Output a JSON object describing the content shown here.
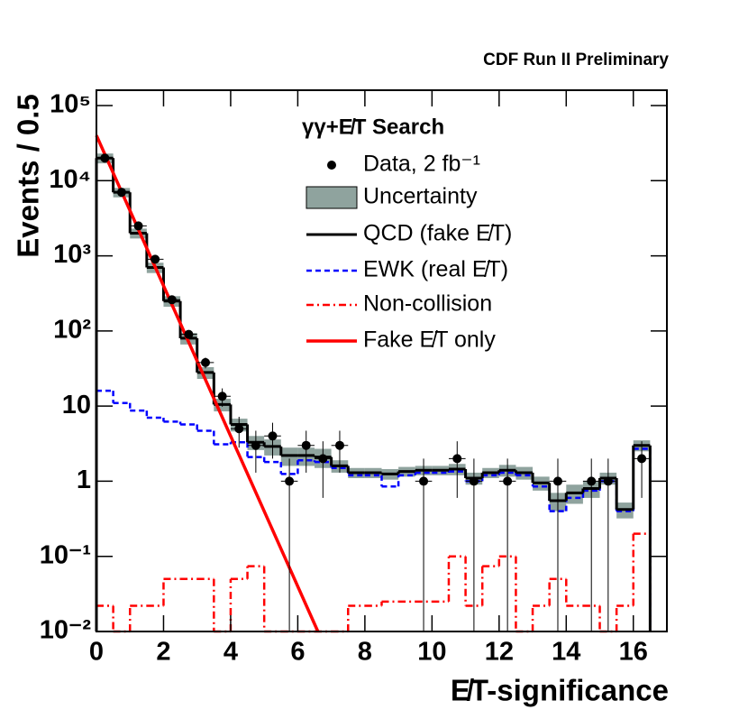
{
  "chart_data": {
    "type": "histogram",
    "title": "CDF Run II Preliminary",
    "xlabel": "E̸T-significance",
    "ylabel": "Events / 0.5",
    "legend_title": "γγ+E̸T Search",
    "log_y": true,
    "xlim": [
      0,
      17
    ],
    "ylim": [
      0.01,
      160000
    ],
    "xticks": [
      0,
      2,
      4,
      6,
      8,
      10,
      12,
      14,
      16
    ],
    "yticks": [
      {
        "value": 0.01,
        "label": "10⁻²"
      },
      {
        "value": 0.1,
        "label": "10⁻¹"
      },
      1,
      10,
      {
        "value": 100,
        "label": "10²"
      },
      {
        "value": 1000,
        "label": "10³"
      },
      {
        "value": 10000,
        "label": "10⁴"
      },
      {
        "value": 100000,
        "label": "10⁵"
      }
    ],
    "bins": [
      0,
      0.5,
      1,
      1.5,
      2,
      2.5,
      3,
      3.5,
      4,
      4.5,
      5,
      5.5,
      6,
      6.5,
      7,
      7.5,
      8,
      8.5,
      9,
      9.5,
      10,
      10.5,
      11,
      11.5,
      12,
      12.5,
      13,
      13.5,
      14,
      14.5,
      15,
      15.5,
      16,
      16.5
    ],
    "data": {
      "name": "Data, 2 fb⁻¹",
      "color": "#000000",
      "xerr": 0.25,
      "x": [
        0.25,
        0.75,
        1.25,
        1.75,
        2.25,
        2.75,
        3.25,
        3.75,
        4.25,
        4.75,
        5.25,
        5.75,
        6.25,
        6.75,
        7.25,
        9.75,
        10.75,
        11.25,
        12.25,
        13.75,
        14.75,
        15.25,
        16.25
      ],
      "values": [
        20000,
        7000,
        2500,
        900,
        260,
        90,
        38,
        13.5,
        5,
        3,
        4,
        1,
        3,
        2,
        3,
        1,
        2,
        1,
        1,
        1,
        1,
        1,
        2
      ],
      "yerr": [
        141,
        84,
        50,
        30,
        16,
        9.5,
        6.2,
        3.7,
        2.2,
        1.7,
        2,
        1,
        1.7,
        1.4,
        1.7,
        1,
        1.4,
        1,
        1,
        1,
        1,
        1,
        1.4
      ]
    },
    "uncertainty_name": "Uncertainty",
    "uncertainty_color": "#8fa39e",
    "series": [
      {
        "name": "QCD (fake E̸T)",
        "color": "#000000",
        "style": "solid",
        "values": [
          20000,
          7000,
          2000,
          700,
          250,
          80,
          28,
          10.5,
          5.7,
          3.3,
          2.9,
          2.2,
          2.2,
          2.1,
          1.6,
          1.3,
          1.3,
          1.25,
          1.35,
          1.4,
          1.4,
          1.45,
          1.1,
          1.3,
          1.4,
          1.3,
          0.95,
          0.55,
          0.7,
          0.8,
          1.1,
          0.42,
          3.0
        ],
        "uncertainty": [
          3000,
          1000,
          300,
          110,
          40,
          14,
          5,
          2,
          1.1,
          0.7,
          0.7,
          0.6,
          0.6,
          0.6,
          0.3,
          0.2,
          0.2,
          0.2,
          0.2,
          0.2,
          0.2,
          0.25,
          0.2,
          0.2,
          0.25,
          0.25,
          0.2,
          0.15,
          0.2,
          0.2,
          0.2,
          0.1,
          0.5
        ]
      },
      {
        "name": "EWK (real E̸T)",
        "color": "#0000ff",
        "style": "dashed",
        "values": [
          16,
          11,
          8.7,
          7,
          6.2,
          5.7,
          4.7,
          3.1,
          3.3,
          2.1,
          1.8,
          1.25,
          1.9,
          1.8,
          1.5,
          1.2,
          1.2,
          0.85,
          1.2,
          1.3,
          1.3,
          1.35,
          1.0,
          1.2,
          1.3,
          1.2,
          0.85,
          0.4,
          0.6,
          0.75,
          1.0,
          0.4,
          2.7
        ]
      },
      {
        "name": "Non-collision",
        "color": "#ff0000",
        "style": "dashdot",
        "values": [
          0.022,
          null,
          0.022,
          0.022,
          0.05,
          0.05,
          0.05,
          null,
          0.05,
          0.074,
          null,
          null,
          null,
          null,
          null,
          0.022,
          0.022,
          0.025,
          0.025,
          0.025,
          0.025,
          0.1,
          0.022,
          0.074,
          0.1,
          null,
          0.022,
          0.05,
          0.022,
          0.022,
          null,
          0.022,
          0.2
        ]
      }
    ],
    "fit": {
      "name": "Fake E̸T only",
      "color": "#ff0000",
      "x": [
        0,
        6.6
      ],
      "values": [
        40000,
        0.01
      ]
    }
  }
}
